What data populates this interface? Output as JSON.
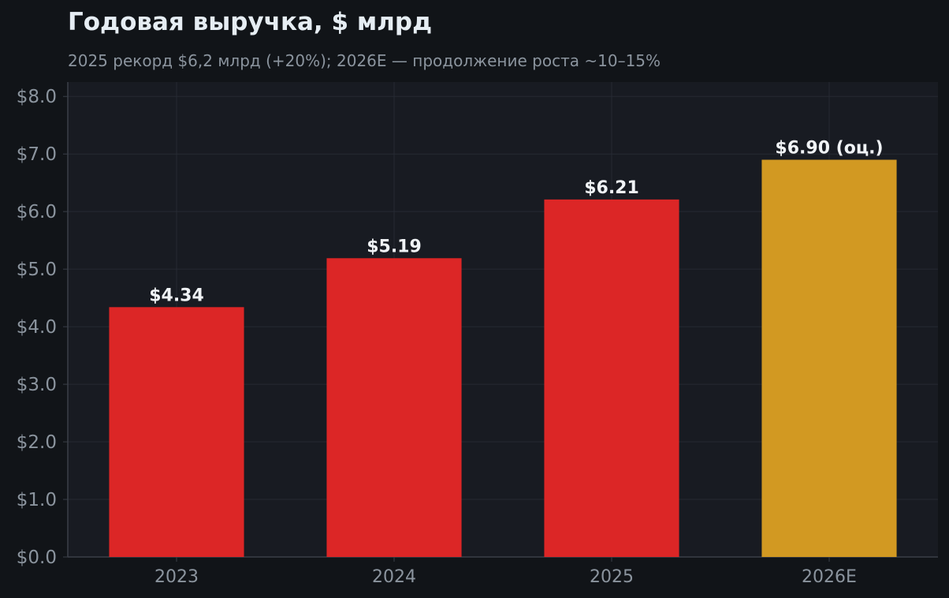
{
  "chart_data": {
    "type": "bar",
    "title": "Годовая выручка, $ млрд",
    "subtitle": "2025 рекорд $6,2 млрд (+20%); 2026E — продолжение роста ~10–15%",
    "categories": [
      "2023",
      "2024",
      "2025",
      "2026E"
    ],
    "values": [
      4.34,
      5.19,
      6.21,
      6.9
    ],
    "value_labels": [
      "$4.34",
      "$5.19",
      "$6.21",
      "$6.90 (оц.)"
    ],
    "bar_colors": [
      "#DC2626",
      "#DC2626",
      "#DC2626",
      "#D29922"
    ],
    "ylim": [
      0,
      8.25
    ],
    "yticks": [
      0,
      1,
      2,
      3,
      4,
      5,
      6,
      7,
      8
    ],
    "ytick_labels": [
      "$0.0",
      "$1.0",
      "$2.0",
      "$3.0",
      "$4.0",
      "$5.0",
      "$6.0",
      "$7.0",
      "$8.0"
    ],
    "xlabel": "",
    "ylabel": "",
    "grid": true,
    "colors": {
      "page_background": "#111418",
      "plot_background": "#181B22",
      "grid": "#262A33",
      "axis": "#3A3F48",
      "title": "#E6EDF3",
      "subtitle": "#8B949E",
      "tick_label": "#8B949E",
      "value_label": "#F0F3F6"
    }
  }
}
